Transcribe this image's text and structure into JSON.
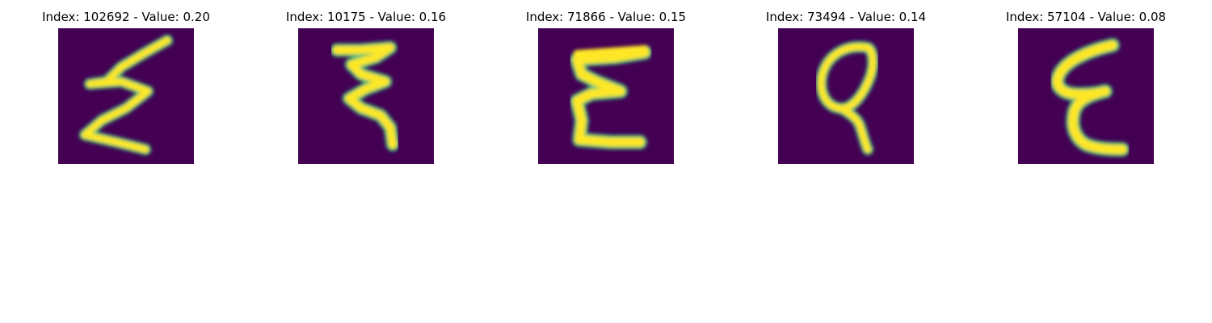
{
  "figure": {
    "colormap": "viridis",
    "background_color": "#440154",
    "stroke_color": "#fde725",
    "panels": [
      {
        "title": "Index: 102692 - Value: 0.20",
        "index": 102692,
        "value": 0.2,
        "image_description": "handwritten zigzag glyph resembling a sigma / epsilon shape"
      },
      {
        "title": "Index: 10175 - Value: 0.16",
        "index": 10175,
        "value": 0.16,
        "image_description": "handwritten glyph with stacked wavy horizontal strokes"
      },
      {
        "title": "Index: 71866 - Value: 0.15",
        "index": 71866,
        "value": 0.15,
        "image_description": "handwritten capital E shaped glyph"
      },
      {
        "title": "Index: 73494 - Value: 0.14",
        "index": 73494,
        "value": 0.14,
        "image_description": "handwritten loop glyph resembling a 9 or q"
      },
      {
        "title": "Index: 57104 - Value: 0.08",
        "index": 57104,
        "value": 0.08,
        "image_description": "handwritten glyph resembling an epsilon"
      }
    ]
  }
}
